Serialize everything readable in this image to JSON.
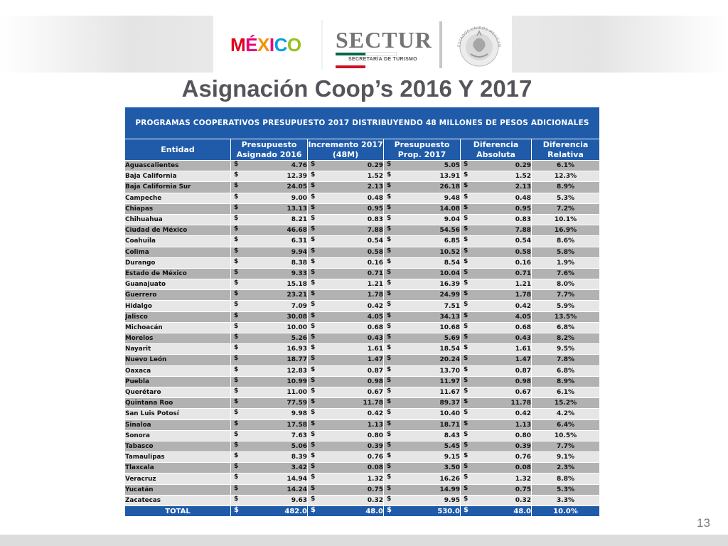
{
  "header": {
    "logo_mexico_letters": [
      "M",
      "É",
      "X",
      "I",
      "C",
      "O"
    ],
    "logo_mexico_colors": [
      "#e2001a",
      "#e3007d",
      "#f39200",
      "#e6007e",
      "#009fe3",
      "#95c11f"
    ],
    "sectur_title": "SECTUR",
    "sectur_subtitle": "SECRETARÍA DE TURISMO",
    "sectur_stripe_colors": [
      "#006847",
      "#ffffff",
      "#ce1126"
    ],
    "seal_text": "ESTADOS UNIDOS MEXICANOS"
  },
  "title": "Asignación Coop’s 2016 Y 2017",
  "table": {
    "caption": "PROGRAMAS COOPERATIVOS PRESUPUESTO 2017 DISTRIBUYENDO 48 MILLONES DE PESOS ADICIONALES",
    "columns": [
      [
        "Entidad"
      ],
      [
        "Presupuesto",
        "Asignado 2016"
      ],
      [
        "Incremento 2017",
        "(48M)"
      ],
      [
        "Presupuesto",
        "Prop. 2017"
      ],
      [
        "Diferencia",
        "Absoluta"
      ],
      [
        "Diferencia",
        "Relativa"
      ]
    ],
    "currency_symbol": "$",
    "rows": [
      [
        "Aguascalientes",
        "4.76",
        "0.29",
        "5.05",
        "0.29",
        "6.1%"
      ],
      [
        "Baja California",
        "12.39",
        "1.52",
        "13.91",
        "1.52",
        "12.3%"
      ],
      [
        "Baja California Sur",
        "24.05",
        "2.13",
        "26.18",
        "2.13",
        "8.9%"
      ],
      [
        "Campeche",
        "9.00",
        "0.48",
        "9.48",
        "0.48",
        "5.3%"
      ],
      [
        "Chiapas",
        "13.13",
        "0.95",
        "14.08",
        "0.95",
        "7.2%"
      ],
      [
        "Chihuahua",
        "8.21",
        "0.83",
        "9.04",
        "0.83",
        "10.1%"
      ],
      [
        "Ciudad de México",
        "46.68",
        "7.88",
        "54.56",
        "7.88",
        "16.9%"
      ],
      [
        "Coahuila",
        "6.31",
        "0.54",
        "6.85",
        "0.54",
        "8.6%"
      ],
      [
        "Colima",
        "9.94",
        "0.58",
        "10.52",
        "0.58",
        "5.8%"
      ],
      [
        "Durango",
        "8.38",
        "0.16",
        "8.54",
        "0.16",
        "1.9%"
      ],
      [
        "Estado de México",
        "9.33",
        "0.71",
        "10.04",
        "0.71",
        "7.6%"
      ],
      [
        "Guanajuato",
        "15.18",
        "1.21",
        "16.39",
        "1.21",
        "8.0%"
      ],
      [
        "Guerrero",
        "23.21",
        "1.78",
        "24.99",
        "1.78",
        "7.7%"
      ],
      [
        "Hidalgo",
        "7.09",
        "0.42",
        "7.51",
        "0.42",
        "5.9%"
      ],
      [
        "Jalisco",
        "30.08",
        "4.05",
        "34.13",
        "4.05",
        "13.5%"
      ],
      [
        "Michoacán",
        "10.00",
        "0.68",
        "10.68",
        "0.68",
        "6.8%"
      ],
      [
        "Morelos",
        "5.26",
        "0.43",
        "5.69",
        "0.43",
        "8.2%"
      ],
      [
        "Nayarit",
        "16.93",
        "1.61",
        "18.54",
        "1.61",
        "9.5%"
      ],
      [
        "Nuevo León",
        "18.77",
        "1.47",
        "20.24",
        "1.47",
        "7.8%"
      ],
      [
        "Oaxaca",
        "12.83",
        "0.87",
        "13.70",
        "0.87",
        "6.8%"
      ],
      [
        "Puebla",
        "10.99",
        "0.98",
        "11.97",
        "0.98",
        "8.9%"
      ],
      [
        "Querétaro",
        "11.00",
        "0.67",
        "11.67",
        "0.67",
        "6.1%"
      ],
      [
        "Quintana Roo",
        "77.59",
        "11.78",
        "89.37",
        "11.78",
        "15.2%"
      ],
      [
        "San Luis Potosí",
        "9.98",
        "0.42",
        "10.40",
        "0.42",
        "4.2%"
      ],
      [
        "Sinaloa",
        "17.58",
        "1.13",
        "18.71",
        "1.13",
        "6.4%"
      ],
      [
        "Sonora",
        "7.63",
        "0.80",
        "8.43",
        "0.80",
        "10.5%"
      ],
      [
        "Tabasco",
        "5.06",
        "0.39",
        "5.45",
        "0.39",
        "7.7%"
      ],
      [
        "Tamaulipas",
        "8.39",
        "0.76",
        "9.15",
        "0.76",
        "9.1%"
      ],
      [
        "Tlaxcala",
        "3.42",
        "0.08",
        "3.50",
        "0.08",
        "2.3%"
      ],
      [
        "Veracruz",
        "14.94",
        "1.32",
        "16.26",
        "1.32",
        "8.8%"
      ],
      [
        "Yucatán",
        "14.24",
        "0.75",
        "14.99",
        "0.75",
        "5.3%"
      ],
      [
        "Zacatecas",
        "9.63",
        "0.32",
        "9.95",
        "0.32",
        "3.3%"
      ]
    ],
    "total": [
      "TOTAL",
      "482.0",
      "48.0",
      "530.0",
      "48.0",
      "10.0%"
    ]
  },
  "slide_number": "13",
  "colors": {
    "header_blue": "#1f5ba9",
    "row_dark": "#b2b2b2",
    "row_light": "#e6e6e6",
    "title_gray": "#54555a"
  }
}
